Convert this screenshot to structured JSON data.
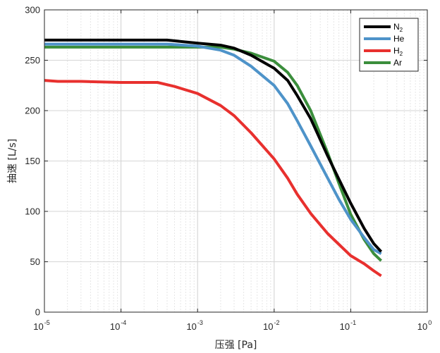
{
  "chart_data": {
    "type": "line",
    "x_scale": "log",
    "xlabel": "压强 [Pa]",
    "ylabel": "抽速 [L/s]",
    "xlim": [
      1e-05,
      1
    ],
    "ylim": [
      0,
      300
    ],
    "grid": true,
    "legend_position": "top-right",
    "x_ticks": [
      {
        "base": "10",
        "exp": "-5",
        "value": 1e-05
      },
      {
        "base": "10",
        "exp": "-4",
        "value": 0.0001
      },
      {
        "base": "10",
        "exp": "-3",
        "value": 0.001
      },
      {
        "base": "10",
        "exp": "-2",
        "value": 0.01
      },
      {
        "base": "10",
        "exp": "-1",
        "value": 0.1
      },
      {
        "base": "10",
        "exp": "0",
        "value": 1
      }
    ],
    "y_ticks": [
      0,
      50,
      100,
      150,
      200,
      250,
      300
    ],
    "series": [
      {
        "name": "N2",
        "label_main": "N",
        "label_sub": "2",
        "color": "#000000",
        "points": [
          [
            1e-05,
            270
          ],
          [
            0.0004,
            270
          ],
          [
            0.001,
            267
          ],
          [
            0.002,
            265
          ],
          [
            0.003,
            262
          ],
          [
            0.005,
            255
          ],
          [
            0.01,
            242
          ],
          [
            0.015,
            230
          ],
          [
            0.02,
            215
          ],
          [
            0.03,
            192
          ],
          [
            0.05,
            155
          ],
          [
            0.07,
            132
          ],
          [
            0.1,
            108
          ],
          [
            0.15,
            83
          ],
          [
            0.2,
            68
          ],
          [
            0.25,
            60
          ]
        ]
      },
      {
        "name": "He",
        "label_main": "He",
        "label_sub": "",
        "color": "#4e93c9",
        "points": [
          [
            1e-05,
            266
          ],
          [
            0.0004,
            266
          ],
          [
            0.001,
            264
          ],
          [
            0.002,
            260
          ],
          [
            0.003,
            255
          ],
          [
            0.005,
            244
          ],
          [
            0.01,
            225
          ],
          [
            0.015,
            207
          ],
          [
            0.02,
            190
          ],
          [
            0.03,
            165
          ],
          [
            0.05,
            133
          ],
          [
            0.07,
            112
          ],
          [
            0.1,
            92
          ],
          [
            0.15,
            74
          ],
          [
            0.2,
            62
          ],
          [
            0.25,
            58
          ]
        ]
      },
      {
        "name": "H2",
        "label_main": "H",
        "label_sub": "2",
        "color": "#e8302e",
        "points": [
          [
            1e-05,
            230
          ],
          [
            1.5e-05,
            229
          ],
          [
            3e-05,
            229
          ],
          [
            0.0001,
            228
          ],
          [
            0.0003,
            228
          ],
          [
            0.0005,
            224
          ],
          [
            0.001,
            217
          ],
          [
            0.002,
            205
          ],
          [
            0.003,
            195
          ],
          [
            0.005,
            178
          ],
          [
            0.01,
            152
          ],
          [
            0.015,
            133
          ],
          [
            0.02,
            117
          ],
          [
            0.03,
            98
          ],
          [
            0.05,
            78
          ],
          [
            0.1,
            56
          ],
          [
            0.15,
            48
          ],
          [
            0.2,
            41
          ],
          [
            0.25,
            36
          ]
        ]
      },
      {
        "name": "Ar",
        "label_main": "Ar",
        "label_sub": "",
        "color": "#3b8e3c",
        "points": [
          [
            1e-05,
            263
          ],
          [
            0.0004,
            263
          ],
          [
            0.001,
            263
          ],
          [
            0.002,
            263
          ],
          [
            0.003,
            261
          ],
          [
            0.005,
            257
          ],
          [
            0.01,
            249
          ],
          [
            0.015,
            238
          ],
          [
            0.02,
            225
          ],
          [
            0.03,
            200
          ],
          [
            0.05,
            158
          ],
          [
            0.07,
            128
          ],
          [
            0.1,
            97
          ],
          [
            0.15,
            72
          ],
          [
            0.2,
            58
          ],
          [
            0.25,
            51
          ]
        ]
      }
    ]
  }
}
